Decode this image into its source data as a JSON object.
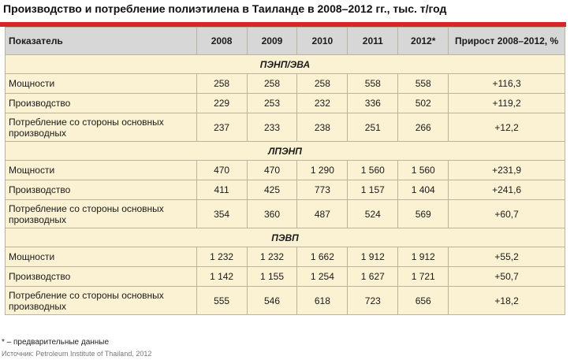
{
  "title": "Производство и потребление полиэтилена в Таиланде в 2008–2012 гг., тыс. т/год",
  "table": {
    "headers": [
      "Показатель",
      "2008",
      "2009",
      "2010",
      "2011",
      "2012*",
      "Прирост 2008–2012, %"
    ],
    "sections": [
      {
        "name": "ПЭНП/ЭВА",
        "rows": [
          [
            "Мощности",
            "258",
            "258",
            "258",
            "558",
            "558",
            "+116,3"
          ],
          [
            "Производство",
            "229",
            "253",
            "232",
            "336",
            "502",
            "+119,2"
          ],
          [
            "Потребление со стороны основных производных",
            "237",
            "233",
            "238",
            "251",
            "266",
            "+12,2"
          ]
        ]
      },
      {
        "name": "ЛПЭНП",
        "rows": [
          [
            "Мощности",
            "470",
            "470",
            "1 290",
            "1 560",
            "1 560",
            "+231,9"
          ],
          [
            "Производство",
            "411",
            "425",
            "773",
            "1 157",
            "1 404",
            "+241,6"
          ],
          [
            "Потребление со стороны основных производных",
            "354",
            "360",
            "487",
            "524",
            "569",
            "+60,7"
          ]
        ]
      },
      {
        "name": "ПЭВП",
        "rows": [
          [
            "Мощности",
            "1 232",
            "1 232",
            "1 662",
            "1 912",
            "1 912",
            "+55,2"
          ],
          [
            "Производство",
            "1 142",
            "1 155",
            "1 254",
            "1 627",
            "1 721",
            "+50,7"
          ],
          [
            "Потребление со стороны основных производных",
            "555",
            "546",
            "618",
            "723",
            "656",
            "+18,2"
          ]
        ]
      }
    ]
  },
  "footnote": "* – предварительные данные",
  "source": "Источник: Petroleum Institute of Thailand, 2012",
  "colors": {
    "accent_bar": "#d6262b",
    "header_bg": "#d7d7d7",
    "table_bg": "#fbf1d3"
  }
}
